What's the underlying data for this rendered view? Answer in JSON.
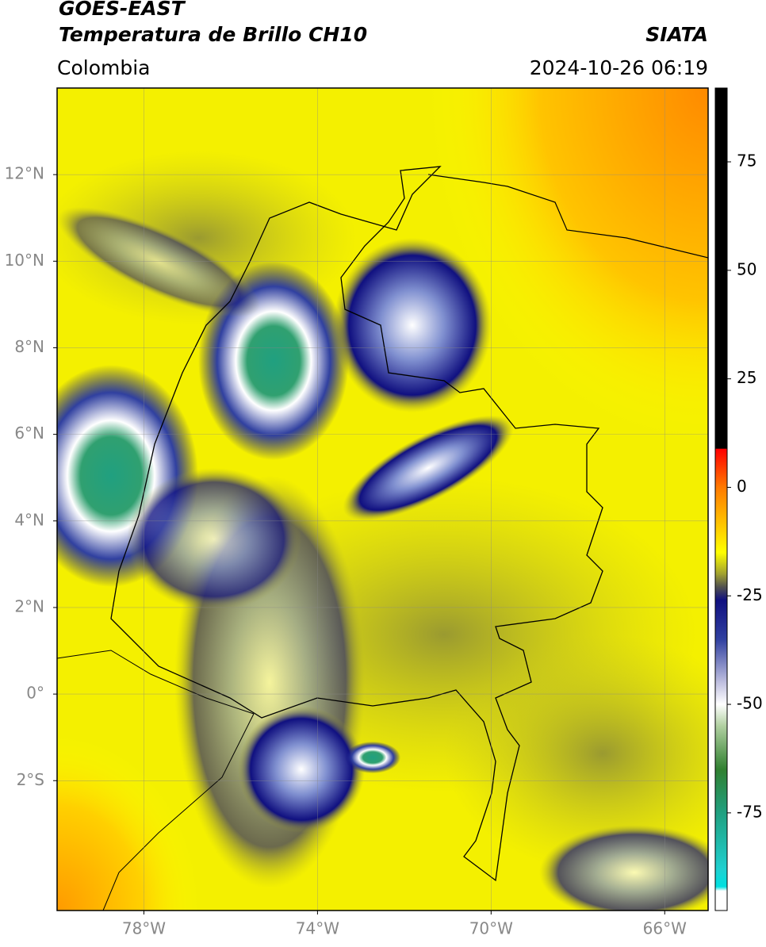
{
  "header": {
    "title_line1": "GOES-EAST",
    "title_line2": "Temperatura de Brillo CH10",
    "source": "SIATA",
    "region": "Colombia",
    "timestamp": "2024-10-26 06:19"
  },
  "chart_data": {
    "type": "map",
    "xlim": [
      -80,
      -65
    ],
    "ylim": [
      -5,
      14
    ],
    "xticks": [
      {
        "value": -78,
        "label": "78°W"
      },
      {
        "value": -74,
        "label": "74°W"
      },
      {
        "value": -70,
        "label": "70°W"
      },
      {
        "value": -66,
        "label": "66°W"
      }
    ],
    "yticks": [
      {
        "value": 12,
        "label": "12°N"
      },
      {
        "value": 10,
        "label": "10°N"
      },
      {
        "value": 8,
        "label": "8°N"
      },
      {
        "value": 6,
        "label": "6°N"
      },
      {
        "value": 4,
        "label": "4°N"
      },
      {
        "value": 2,
        "label": "2°N"
      },
      {
        "value": 0,
        "label": "0°"
      },
      {
        "value": -2,
        "label": "2°S"
      }
    ],
    "grid": true,
    "colorbar": {
      "lim": [
        -97.5,
        92
      ],
      "ticks": [
        75,
        50,
        25,
        0,
        -25,
        -50,
        -75
      ],
      "stops": [
        {
          "value": 92,
          "color": "#000000"
        },
        {
          "value": 9,
          "color": "#000000"
        },
        {
          "value": 8.8,
          "color": "#ff0000"
        },
        {
          "value": 0,
          "color": "#ff7a00"
        },
        {
          "value": -10,
          "color": "#ffd200"
        },
        {
          "value": -15,
          "color": "#ffff00"
        },
        {
          "value": -20,
          "color": "#a0a030"
        },
        {
          "value": -23,
          "color": "#505050"
        },
        {
          "value": -26,
          "color": "#101080"
        },
        {
          "value": -35,
          "color": "#3040a0"
        },
        {
          "value": -45,
          "color": "#c0c0e0"
        },
        {
          "value": -50,
          "color": "#ffffff"
        },
        {
          "value": -55,
          "color": "#b0d0a0"
        },
        {
          "value": -65,
          "color": "#308030"
        },
        {
          "value": -75,
          "color": "#20a080"
        },
        {
          "value": -88,
          "color": "#20d0d0"
        },
        {
          "value": -92,
          "color": "#00e0e0"
        },
        {
          "value": -93,
          "color": "#ffffff"
        },
        {
          "value": -97.5,
          "color": "#ffffff"
        }
      ]
    }
  }
}
